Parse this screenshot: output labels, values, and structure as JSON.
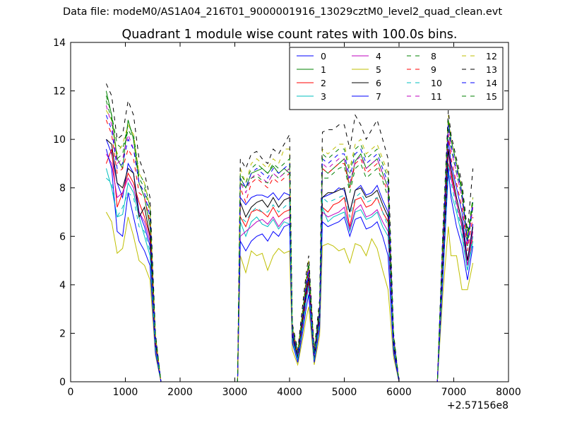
{
  "figure": {
    "suptitle": "Data file: modeM0/AS1A04_216T01_9000001916_13029cztM0_level2_quad_clean.evt"
  },
  "chart_data": {
    "type": "line",
    "title": "Quadrant 1 module wise count rates with 100.0s bins.",
    "xlabel": "",
    "ylabel": "",
    "x_offset_label": "+2.57156e8",
    "xlim": [
      0,
      8000
    ],
    "ylim": [
      0,
      14
    ],
    "xticks": [
      0,
      1000,
      2000,
      3000,
      4000,
      5000,
      6000,
      7000,
      8000
    ],
    "yticks": [
      0,
      2,
      4,
      6,
      8,
      10,
      12,
      14
    ],
    "legend_position": "top-right",
    "legend_columns": 4,
    "x": [
      650,
      750,
      850,
      950,
      1050,
      1150,
      1250,
      1350,
      1450,
      1550,
      1650,
      1750,
      1850,
      1950,
      2050,
      2150,
      2250,
      2350,
      2450,
      2550,
      2650,
      2750,
      2850,
      2950,
      3050,
      3100,
      3200,
      3300,
      3400,
      3500,
      3600,
      3700,
      3800,
      3900,
      4000,
      4050,
      4150,
      4250,
      4300,
      4350,
      4450,
      4550,
      4600,
      4700,
      4800,
      4900,
      5000,
      5100,
      5200,
      5300,
      5400,
      5500,
      5600,
      5700,
      5800,
      5900,
      6000,
      6100,
      6200,
      6300,
      6400,
      6500,
      6600,
      6700,
      6800,
      6900,
      6950,
      7050,
      7150,
      7250,
      7350
    ],
    "series": [
      {
        "name": "0",
        "color": "#0000ff",
        "dash": false,
        "values": [
          10.0,
          9.4,
          8.2,
          7.6,
          9.0,
          8.6,
          7.0,
          6.4,
          5.6,
          1.6,
          0,
          0,
          0,
          0,
          0,
          0,
          0,
          0,
          0,
          0,
          0,
          0,
          0,
          0,
          0,
          7.6,
          7.3,
          7.6,
          7.7,
          7.7,
          7.6,
          7.8,
          7.5,
          7.8,
          7.7,
          2.0,
          1.1,
          2.8,
          3.8,
          4.5,
          1.1,
          2.8,
          7.6,
          7.7,
          7.8,
          8.0,
          7.9,
          7.0,
          7.9,
          8.1,
          7.7,
          7.8,
          8.1,
          7.5,
          7.0,
          1.6,
          0,
          0,
          0,
          0,
          0,
          0,
          0,
          0,
          5.0,
          10.0,
          9.0,
          8.0,
          7.0,
          5.0,
          6.5
        ]
      },
      {
        "name": "1",
        "color": "#008000",
        "dash": false,
        "values": [
          12.0,
          11.0,
          9.2,
          8.8,
          10.8,
          10.0,
          8.2,
          7.6,
          6.4,
          1.9,
          0,
          0,
          0,
          0,
          0,
          0,
          0,
          0,
          0,
          0,
          0,
          0,
          0,
          0,
          0,
          8.4,
          8.0,
          8.6,
          8.7,
          8.8,
          8.6,
          8.9,
          8.6,
          8.8,
          8.6,
          2.2,
          1.2,
          3.0,
          4.1,
          4.8,
          1.2,
          3.0,
          8.8,
          8.6,
          8.8,
          9.0,
          9.2,
          8.0,
          9.1,
          9.4,
          8.8,
          9.0,
          9.2,
          8.6,
          8.0,
          1.8,
          0,
          0,
          0,
          0,
          0,
          0,
          0,
          0,
          5.8,
          10.8,
          10.0,
          9.0,
          7.8,
          5.8,
          7.4
        ]
      },
      {
        "name": "2",
        "color": "#ff0000",
        "dash": false,
        "values": [
          9.0,
          9.6,
          7.2,
          7.8,
          8.6,
          8.2,
          7.4,
          6.8,
          6.0,
          1.5,
          0,
          0,
          0,
          0,
          0,
          0,
          0,
          0,
          0,
          0,
          0,
          0,
          0,
          0,
          0,
          6.8,
          6.4,
          7.0,
          7.1,
          7.0,
          6.8,
          7.2,
          6.8,
          7.0,
          7.1,
          1.8,
          1.0,
          2.6,
          3.5,
          4.1,
          1.0,
          2.6,
          7.2,
          7.0,
          7.3,
          7.4,
          7.6,
          6.4,
          7.5,
          7.6,
          7.2,
          7.3,
          7.6,
          7.0,
          6.6,
          1.5,
          0,
          0,
          0,
          0,
          0,
          0,
          0,
          0,
          4.6,
          9.0,
          8.6,
          7.4,
          6.4,
          4.8,
          6.0
        ]
      },
      {
        "name": "3",
        "color": "#00bfbf",
        "dash": false,
        "values": [
          8.8,
          8.0,
          6.8,
          6.9,
          8.2,
          7.8,
          6.8,
          6.0,
          5.2,
          1.4,
          0,
          0,
          0,
          0,
          0,
          0,
          0,
          0,
          0,
          0,
          0,
          0,
          0,
          0,
          0,
          6.6,
          6.0,
          6.6,
          6.8,
          6.5,
          6.4,
          6.7,
          6.3,
          6.6,
          6.5,
          1.7,
          0.9,
          2.4,
          3.3,
          3.9,
          0.9,
          2.4,
          7.2,
          6.6,
          6.8,
          6.9,
          7.0,
          6.2,
          7.0,
          7.1,
          6.7,
          6.8,
          7.0,
          6.4,
          6.0,
          1.4,
          0,
          0,
          0,
          0,
          0,
          0,
          0,
          0,
          4.4,
          8.6,
          7.8,
          7.0,
          6.0,
          4.6,
          5.8
        ]
      },
      {
        "name": "4",
        "color": "#bf00bf",
        "dash": false,
        "values": [
          9.4,
          9.0,
          7.6,
          7.8,
          8.4,
          8.0,
          7.0,
          6.6,
          5.8,
          1.5,
          0,
          0,
          0,
          0,
          0,
          0,
          0,
          0,
          0,
          0,
          0,
          0,
          0,
          0,
          0,
          6.0,
          6.2,
          6.4,
          6.6,
          6.7,
          6.5,
          6.8,
          6.4,
          6.7,
          6.8,
          1.8,
          1.0,
          2.5,
          3.4,
          4.0,
          1.0,
          2.5,
          7.0,
          6.8,
          6.9,
          7.0,
          7.2,
          6.3,
          7.1,
          7.3,
          6.8,
          6.9,
          7.1,
          6.6,
          6.2,
          1.4,
          0,
          0,
          0,
          0,
          0,
          0,
          0,
          0,
          4.8,
          9.6,
          8.4,
          7.4,
          6.4,
          4.8,
          6.2
        ]
      },
      {
        "name": "5",
        "color": "#bfbf00",
        "dash": false,
        "values": [
          7.0,
          6.6,
          5.3,
          5.5,
          6.8,
          6.0,
          5.0,
          4.8,
          4.2,
          1.1,
          0,
          0,
          0,
          0,
          0,
          0,
          0,
          0,
          0,
          0,
          0,
          0,
          0,
          0,
          0,
          5.2,
          4.5,
          5.4,
          5.2,
          5.3,
          4.6,
          5.2,
          5.5,
          5.3,
          5.4,
          1.3,
          0.7,
          1.9,
          2.6,
          3.1,
          0.7,
          1.9,
          5.6,
          5.7,
          5.6,
          5.4,
          5.5,
          4.9,
          5.7,
          5.6,
          5.2,
          5.9,
          5.5,
          4.6,
          3.8,
          1.0,
          0,
          0,
          0,
          0,
          0,
          0,
          0,
          0,
          3.6,
          6.4,
          5.2,
          5.2,
          3.8,
          3.8,
          4.9
        ]
      },
      {
        "name": "6",
        "color": "#000000",
        "dash": false,
        "values": [
          10.0,
          9.8,
          8.2,
          8.0,
          8.8,
          8.6,
          6.8,
          7.2,
          6.0,
          1.6,
          0,
          0,
          0,
          0,
          0,
          0,
          0,
          0,
          0,
          0,
          0,
          0,
          0,
          0,
          0,
          7.4,
          6.8,
          7.2,
          7.4,
          7.5,
          7.2,
          7.6,
          7.2,
          7.5,
          7.6,
          1.9,
          1.0,
          2.7,
          3.6,
          4.3,
          1.0,
          2.7,
          7.6,
          7.8,
          7.8,
          7.9,
          8.0,
          7.0,
          7.9,
          8.0,
          7.6,
          7.7,
          7.9,
          7.3,
          6.8,
          1.5,
          0,
          0,
          0,
          0,
          0,
          0,
          0,
          0,
          4.8,
          9.6,
          8.8,
          7.6,
          6.6,
          5.0,
          6.4
        ]
      },
      {
        "name": "7",
        "color": "#0000ff",
        "dash": false,
        "values": [
          9.6,
          8.8,
          6.2,
          6.0,
          7.8,
          6.8,
          5.8,
          5.4,
          4.8,
          1.2,
          0,
          0,
          0,
          0,
          0,
          0,
          0,
          0,
          0,
          0,
          0,
          0,
          0,
          0,
          0,
          5.8,
          5.4,
          5.8,
          6.0,
          6.1,
          5.8,
          6.2,
          6.0,
          6.4,
          6.5,
          1.6,
          0.8,
          2.2,
          3.0,
          3.6,
          0.8,
          2.2,
          6.6,
          6.4,
          6.5,
          6.6,
          6.8,
          6.0,
          6.7,
          6.8,
          6.3,
          6.4,
          6.6,
          6.0,
          5.2,
          1.2,
          0,
          0,
          0,
          0,
          0,
          0,
          0,
          0,
          4.2,
          8.8,
          7.6,
          6.4,
          5.6,
          4.2,
          5.6
        ]
      },
      {
        "name": "8",
        "color": "#008000",
        "dash": true,
        "values": [
          11.8,
          11.0,
          9.8,
          9.6,
          10.6,
          10.2,
          8.6,
          8.2,
          7.2,
          1.9,
          0,
          0,
          0,
          0,
          0,
          0,
          0,
          0,
          0,
          0,
          0,
          0,
          0,
          0,
          0,
          8.2,
          8.0,
          8.4,
          8.5,
          8.3,
          8.2,
          8.6,
          8.4,
          8.6,
          8.8,
          2.2,
          1.2,
          3.0,
          4.0,
          4.7,
          1.2,
          3.0,
          8.4,
          8.4,
          8.6,
          8.8,
          8.9,
          7.8,
          8.8,
          9.0,
          8.4,
          8.6,
          8.8,
          8.3,
          7.6,
          1.8,
          0,
          0,
          0,
          0,
          0,
          0,
          0,
          0,
          5.6,
          10.4,
          9.6,
          8.6,
          7.6,
          5.6,
          7.2
        ]
      },
      {
        "name": "9",
        "color": "#ff0000",
        "dash": true,
        "values": [
          10.8,
          10.2,
          8.6,
          8.8,
          9.6,
          9.2,
          7.8,
          7.6,
          6.6,
          1.7,
          0,
          0,
          0,
          0,
          0,
          0,
          0,
          0,
          0,
          0,
          0,
          0,
          0,
          0,
          0,
          8.0,
          7.4,
          8.2,
          8.4,
          8.2,
          8.0,
          8.4,
          8.2,
          8.4,
          8.6,
          2.1,
          1.1,
          2.9,
          3.9,
          4.6,
          1.1,
          2.9,
          8.8,
          8.6,
          8.8,
          9.0,
          9.0,
          8.0,
          9.0,
          9.2,
          8.6,
          8.8,
          9.0,
          8.4,
          7.8,
          1.8,
          0,
          0,
          0,
          0,
          0,
          0,
          0,
          0,
          5.4,
          10.2,
          9.2,
          8.2,
          7.2,
          5.4,
          6.8
        ]
      },
      {
        "name": "10",
        "color": "#00bfbf",
        "dash": true,
        "values": [
          8.4,
          8.2,
          6.8,
          7.2,
          7.8,
          7.6,
          6.4,
          6.2,
          5.4,
          1.4,
          0,
          0,
          0,
          0,
          0,
          0,
          0,
          0,
          0,
          0,
          0,
          0,
          0,
          0,
          0,
          6.8,
          6.6,
          7.0,
          7.2,
          7.0,
          7.0,
          7.3,
          7.0,
          7.2,
          7.4,
          1.8,
          0.9,
          2.5,
          3.4,
          4.0,
          0.9,
          2.5,
          7.6,
          7.4,
          7.5,
          7.6,
          7.7,
          6.8,
          7.6,
          7.8,
          7.4,
          7.5,
          7.6,
          7.0,
          6.4,
          1.5,
          0,
          0,
          0,
          0,
          0,
          0,
          0,
          0,
          4.6,
          9.0,
          8.2,
          7.2,
          6.2,
          4.6,
          6.0
        ]
      },
      {
        "name": "11",
        "color": "#bf00bf",
        "dash": true,
        "values": [
          11.4,
          10.6,
          9.0,
          9.2,
          10.2,
          9.6,
          8.2,
          7.8,
          6.8,
          1.8,
          0,
          0,
          0,
          0,
          0,
          0,
          0,
          0,
          0,
          0,
          0,
          0,
          0,
          0,
          0,
          8.2,
          7.8,
          8.4,
          8.6,
          8.4,
          8.2,
          8.6,
          8.4,
          8.6,
          8.8,
          2.2,
          1.1,
          3.0,
          4.0,
          4.7,
          1.1,
          3.0,
          9.0,
          8.8,
          9.0,
          9.2,
          9.2,
          8.2,
          9.1,
          9.3,
          8.8,
          9.0,
          9.2,
          8.6,
          8.0,
          1.8,
          0,
          0,
          0,
          0,
          0,
          0,
          0,
          0,
          5.6,
          10.6,
          9.6,
          8.6,
          7.6,
          5.6,
          7.2
        ]
      },
      {
        "name": "12",
        "color": "#bfbf00",
        "dash": true,
        "values": [
          11.2,
          10.8,
          9.4,
          9.8,
          10.6,
          10.2,
          8.6,
          8.2,
          7.2,
          1.9,
          0,
          0,
          0,
          0,
          0,
          0,
          0,
          0,
          0,
          0,
          0,
          0,
          0,
          0,
          0,
          8.8,
          8.2,
          9.0,
          9.2,
          9.0,
          8.8,
          9.2,
          9.0,
          9.6,
          9.6,
          2.3,
          1.2,
          3.2,
          4.2,
          5.0,
          1.2,
          3.2,
          9.6,
          9.4,
          9.6,
          9.8,
          9.8,
          8.8,
          9.8,
          10.0,
          9.4,
          9.6,
          9.8,
          9.2,
          8.6,
          1.9,
          0,
          0,
          0,
          0,
          0,
          0,
          0,
          0,
          6.0,
          11.0,
          10.0,
          9.0,
          8.0,
          6.0,
          7.6
        ]
      },
      {
        "name": "13",
        "color": "#000000",
        "dash": true,
        "values": [
          12.3,
          11.8,
          10.0,
          10.2,
          11.6,
          11.0,
          9.2,
          8.6,
          7.6,
          2.0,
          0,
          0,
          0,
          0,
          0,
          0,
          0,
          0,
          0,
          0,
          0,
          0,
          0,
          0,
          0,
          9.2,
          8.8,
          9.4,
          9.5,
          9.2,
          9.0,
          9.6,
          9.4,
          9.8,
          10.2,
          2.4,
          1.3,
          3.4,
          4.4,
          5.2,
          1.3,
          3.4,
          10.3,
          10.4,
          10.4,
          10.6,
          10.6,
          9.6,
          11.0,
          10.6,
          10.0,
          10.4,
          10.8,
          10.0,
          9.2,
          2.0,
          0,
          0,
          0,
          0,
          0,
          0,
          0,
          0,
          6.2,
          11.2,
          10.2,
          9.2,
          8.2,
          6.2,
          8.8
        ]
      },
      {
        "name": "14",
        "color": "#0000ff",
        "dash": true,
        "values": [
          11.0,
          10.4,
          8.8,
          9.0,
          10.0,
          9.6,
          8.2,
          7.8,
          6.8,
          1.8,
          0,
          0,
          0,
          0,
          0,
          0,
          0,
          0,
          0,
          0,
          0,
          0,
          0,
          0,
          0,
          8.4,
          8.0,
          8.6,
          8.8,
          8.6,
          8.4,
          8.8,
          8.6,
          8.8,
          9.0,
          2.2,
          1.1,
          3.0,
          4.0,
          4.8,
          1.1,
          3.0,
          9.2,
          9.0,
          9.2,
          9.4,
          9.4,
          8.4,
          9.4,
          9.6,
          9.0,
          9.2,
          9.4,
          8.8,
          8.2,
          1.8,
          0,
          0,
          0,
          0,
          0,
          0,
          0,
          0,
          5.8,
          10.6,
          9.8,
          8.8,
          7.8,
          5.8,
          7.4
        ]
      },
      {
        "name": "15",
        "color": "#008000",
        "dash": true,
        "values": [
          11.6,
          10.8,
          9.2,
          9.4,
          10.4,
          10.0,
          8.4,
          8.0,
          7.0,
          1.9,
          0,
          0,
          0,
          0,
          0,
          0,
          0,
          0,
          0,
          0,
          0,
          0,
          0,
          0,
          0,
          8.6,
          8.2,
          8.8,
          9.0,
          8.8,
          8.6,
          9.0,
          8.8,
          9.0,
          9.2,
          2.3,
          1.2,
          3.1,
          4.1,
          4.9,
          1.2,
          3.1,
          9.4,
          9.2,
          9.4,
          9.6,
          9.6,
          8.6,
          9.6,
          9.8,
          9.2,
          9.4,
          9.6,
          9.0,
          8.4,
          1.9,
          0,
          0,
          0,
          0,
          0,
          0,
          0,
          0,
          6.0,
          10.8,
          10.0,
          9.0,
          8.0,
          6.0,
          7.6
        ]
      }
    ]
  }
}
